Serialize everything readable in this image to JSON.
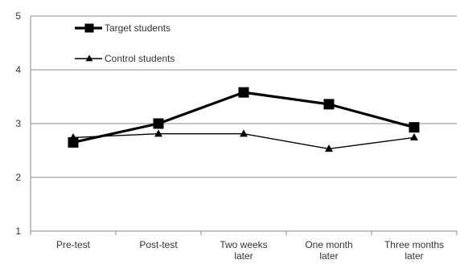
{
  "chart_data": {
    "type": "line",
    "title": "",
    "xlabel": "",
    "ylabel": "",
    "categories": [
      [
        "Pre-test"
      ],
      [
        "Post-test"
      ],
      [
        "Two weeks",
        "later"
      ],
      [
        "One month",
        "later"
      ],
      [
        "Three months",
        "later"
      ]
    ],
    "ylim": [
      1,
      5
    ],
    "yticks": [
      1,
      2,
      3,
      4,
      5
    ],
    "grid": "horizontal",
    "legend_position": "top-left",
    "series": [
      {
        "name": "Target students",
        "values": [
          2.65,
          3.0,
          3.58,
          3.36,
          2.93
        ],
        "marker": "square",
        "color": "#000000",
        "weight": "thick"
      },
      {
        "name": "Control students",
        "values": [
          2.74,
          2.81,
          2.81,
          2.53,
          2.74
        ],
        "marker": "triangle",
        "color": "#000000",
        "weight": "thin"
      }
    ]
  }
}
